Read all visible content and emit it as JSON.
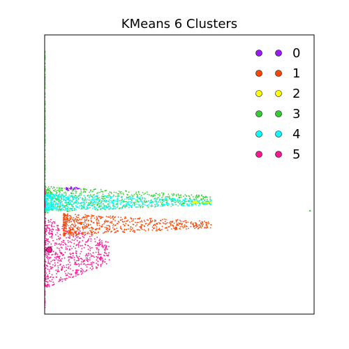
{
  "chart_data": {
    "type": "scatter",
    "title": "KMeans 6 Clusters",
    "xlabel": "",
    "ylabel": "",
    "xlim": [
      0,
      1
    ],
    "ylim": [
      0,
      1
    ],
    "x_ticks_visible": false,
    "y_ticks_visible": false,
    "grid": false,
    "legend": {
      "position": "top-right",
      "marker": "circle",
      "numpoints": 2
    },
    "series": [
      {
        "name": "0",
        "color": "#9b19f5"
      },
      {
        "name": "1",
        "color": "#ff4500"
      },
      {
        "name": "2",
        "color": "#ffff00"
      },
      {
        "name": "3",
        "color": "#32cd32"
      },
      {
        "name": "4",
        "color": "#00ffff"
      },
      {
        "name": "5",
        "color": "#ff1493"
      }
    ],
    "clusters": [
      {
        "series": "0",
        "x": [
          0.08,
          0.13
        ],
        "y_center": 0.45,
        "y_spread": 0.005,
        "density": "sparse"
      },
      {
        "series": "1",
        "x": [
          0.07,
          0.62
        ],
        "y_center": 0.32,
        "y_spread": 0.025,
        "density": "dense"
      },
      {
        "series": "2",
        "x": [
          0.55,
          0.63
        ],
        "y_center": 0.4,
        "y_spread": 0.002,
        "density": "sparse"
      },
      {
        "series": "3",
        "x": [
          0.0,
          0.62
        ],
        "y_center": 0.41,
        "y_spread": 0.03,
        "density": "dense",
        "outlier": [
          0.985,
          0.37
        ]
      },
      {
        "series": "4",
        "x": [
          0.0,
          0.62
        ],
        "y_center": 0.4,
        "y_spread": 0.02,
        "density": "dense"
      },
      {
        "series": "5",
        "x": [
          0.0,
          0.24
        ],
        "y_center": 0.22,
        "y_spread": 0.08,
        "density": "dense",
        "highlight": [
          0.017,
          0.23
        ]
      }
    ]
  }
}
